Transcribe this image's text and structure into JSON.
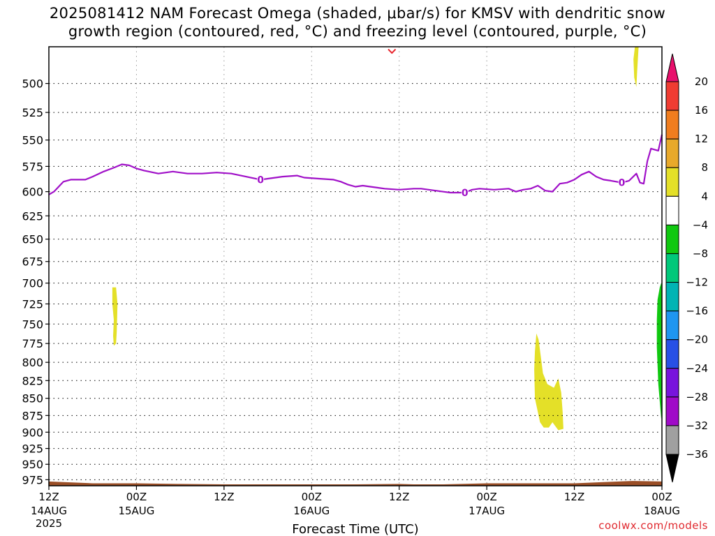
{
  "title": {
    "line1": "2025081412 NAM Forecast Omega (shaded, μbar/s) for KMSV with dendritic snow",
    "line2": "growth region (contoured, red, °C) and freezing level (contoured, purple, °C)"
  },
  "watermark": "coolwx.com/models",
  "chart_data": {
    "type": "contour",
    "title": "2025081412 NAM Forecast Omega (shaded, μbar/s) for KMSV with dendritic snow growth region (contoured, red, °C) and freezing level (contoured, purple, °C)",
    "xlabel": "Forecast Time (UTC)",
    "ylabel": "",
    "x_unit": "hours since 2025-08-14 12Z",
    "xlim": [
      0,
      84
    ],
    "ylim": [
      470,
      985
    ],
    "y_inverted": true,
    "y_scale": "log-pressure (mb)",
    "grid": true,
    "x_ticks": [
      {
        "x": 0,
        "line1": "12Z",
        "line2": "14AUG",
        "line3": "2025"
      },
      {
        "x": 12,
        "line1": "00Z",
        "line2": "15AUG",
        "line3": ""
      },
      {
        "x": 24,
        "line1": "12Z",
        "line2": "",
        "line3": ""
      },
      {
        "x": 36,
        "line1": "00Z",
        "line2": "16AUG",
        "line3": ""
      },
      {
        "x": 48,
        "line1": "12Z",
        "line2": "",
        "line3": ""
      },
      {
        "x": 60,
        "line1": "00Z",
        "line2": "17AUG",
        "line3": ""
      },
      {
        "x": 72,
        "line1": "12Z",
        "line2": "",
        "line3": ""
      },
      {
        "x": 84,
        "line1": "00Z",
        "line2": "18AUG",
        "line3": ""
      }
    ],
    "y_ticks": [
      500,
      525,
      550,
      575,
      600,
      625,
      650,
      675,
      700,
      725,
      750,
      775,
      800,
      825,
      850,
      875,
      900,
      925,
      950,
      975
    ],
    "freezing_level": {
      "label": "0",
      "color": "#a010c8",
      "label_positions": [
        [
          29,
          588
        ],
        [
          57,
          601
        ],
        [
          78.5,
          591
        ]
      ],
      "points": [
        [
          0,
          603
        ],
        [
          0.7,
          600
        ],
        [
          2,
          590
        ],
        [
          3,
          588
        ],
        [
          5,
          588
        ],
        [
          6,
          585
        ],
        [
          7.5,
          580
        ],
        [
          9,
          576
        ],
        [
          10,
          573
        ],
        [
          11,
          574
        ],
        [
          12,
          577
        ],
        [
          13,
          579
        ],
        [
          15,
          582
        ],
        [
          17,
          580
        ],
        [
          19,
          582
        ],
        [
          21,
          582
        ],
        [
          23,
          581
        ],
        [
          25,
          582
        ],
        [
          27,
          585
        ],
        [
          29,
          588
        ],
        [
          30,
          587
        ],
        [
          32,
          585
        ],
        [
          34,
          584
        ],
        [
          35,
          586
        ],
        [
          37,
          587
        ],
        [
          39,
          588
        ],
        [
          40,
          590
        ],
        [
          41,
          593
        ],
        [
          42,
          595
        ],
        [
          43,
          594
        ],
        [
          45,
          596
        ],
        [
          46,
          597
        ],
        [
          48,
          598
        ],
        [
          50,
          597
        ],
        [
          51,
          597
        ],
        [
          53,
          599
        ],
        [
          55,
          601
        ],
        [
          57,
          601
        ],
        [
          58,
          598
        ],
        [
          59,
          597
        ],
        [
          61,
          598
        ],
        [
          63,
          597
        ],
        [
          64,
          600
        ],
        [
          65,
          598
        ],
        [
          66,
          597
        ],
        [
          67,
          594
        ],
        [
          68,
          599
        ],
        [
          69,
          600
        ],
        [
          70,
          592
        ],
        [
          71,
          591
        ],
        [
          72,
          588
        ],
        [
          73,
          583
        ],
        [
          74,
          580
        ],
        [
          75,
          585
        ],
        [
          76,
          588
        ],
        [
          77,
          589
        ],
        [
          78.5,
          591
        ],
        [
          79.5,
          589
        ],
        [
          80.5,
          582
        ],
        [
          81,
          591
        ],
        [
          81.5,
          592
        ],
        [
          82,
          570
        ],
        [
          82.5,
          558
        ],
        [
          83.5,
          560
        ],
        [
          84,
          545
        ]
      ]
    },
    "dgz_contour": {
      "color": "#e8242c",
      "points": [
        [
          46.5,
          472
        ],
        [
          47,
          475
        ],
        [
          47.5,
          472
        ]
      ]
    },
    "omega_shading": [
      {
        "name": "positive 4-8",
        "color": "#e4e028",
        "polygon": [
          [
            8.7,
            705
          ],
          [
            9.2,
            705
          ],
          [
            9.4,
            725
          ],
          [
            9.3,
            760
          ],
          [
            9.2,
            775
          ],
          [
            8.9,
            778
          ],
          [
            8.8,
            765
          ],
          [
            8.9,
            745
          ],
          [
            8.7,
            725
          ]
        ]
      },
      {
        "name": "positive 4-8",
        "color": "#e4e028",
        "polygon": [
          [
            80.3,
            470
          ],
          [
            80.8,
            470
          ],
          [
            80.6,
            490
          ],
          [
            80.5,
            503
          ],
          [
            80.2,
            495
          ],
          [
            80.1,
            480
          ]
        ]
      },
      {
        "name": "positive 4-8",
        "color": "#e4e028",
        "polygon": [
          [
            66.8,
            762
          ],
          [
            67.1,
            770
          ],
          [
            67.7,
            815
          ],
          [
            68.3,
            830
          ],
          [
            69.2,
            835
          ],
          [
            69.8,
            822
          ],
          [
            70.2,
            842
          ],
          [
            70.4,
            870
          ],
          [
            70.5,
            895
          ],
          [
            69.8,
            897
          ],
          [
            69.0,
            885
          ],
          [
            68.5,
            893
          ],
          [
            67.8,
            893
          ],
          [
            67.3,
            885
          ],
          [
            67.0,
            870
          ],
          [
            66.6,
            850
          ],
          [
            66.5,
            810
          ],
          [
            66.6,
            785
          ]
        ]
      },
      {
        "name": "negative -4 to -8",
        "color": "#10c810",
        "polygon": [
          [
            83.7,
            705
          ],
          [
            83.9,
            700
          ],
          [
            84,
            700
          ],
          [
            84,
            870
          ],
          [
            83.9,
            880
          ],
          [
            83.5,
            830
          ],
          [
            83.3,
            780
          ],
          [
            83.3,
            745
          ],
          [
            83.4,
            720
          ]
        ]
      }
    ],
    "surface": {
      "color": "#9a4e26"
    },
    "colorbar": {
      "unit": "μbar/s",
      "levels": [
        20,
        16,
        12,
        8,
        4,
        -4,
        -8,
        -12,
        -16,
        -20,
        -24,
        -28,
        -32,
        -36
      ],
      "colors": [
        "#e8106c",
        "#f03c32",
        "#f07d1e",
        "#e8a92a",
        "#e4e028",
        "#ffffff",
        "#10c810",
        "#00c87a",
        "#00b4b4",
        "#1e96f0",
        "#2850e6",
        "#7814dc",
        "#a00ac8",
        "#a0a0a0",
        "#000000"
      ]
    }
  }
}
